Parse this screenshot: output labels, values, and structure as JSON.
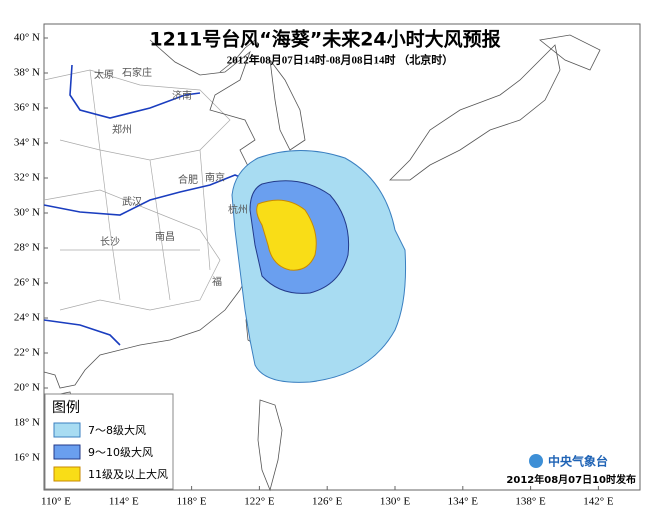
{
  "header": {
    "title": "1211号台风“海葵”未来24小时大风预报",
    "subtitle": "2012年08月07日14时-08月08日14时 （北京时）"
  },
  "lat_labels": [
    "40° N",
    "38° N",
    "36° N",
    "34° N",
    "32° N",
    "30° N",
    "28° N",
    "26° N",
    "24° N",
    "22° N",
    "20° N",
    "18° N",
    "16° N"
  ],
  "lon_labels": [
    "110° E",
    "114° E",
    "118° E",
    "122° E",
    "126° E",
    "130° E",
    "134° E",
    "138° E",
    "142° E"
  ],
  "cities": [
    "太原",
    "石家庄",
    "济南",
    "郑州",
    "合肥",
    "南京",
    "武汉",
    "杭州",
    "长沙",
    "南昌",
    "福"
  ],
  "legend": {
    "title": "图例",
    "items": [
      "7～8级大风",
      "9～10级大风",
      "11级及以上大风"
    ]
  },
  "footer": {
    "agency": "中央气象台",
    "issued": "2012年08月07日10时发布"
  }
}
